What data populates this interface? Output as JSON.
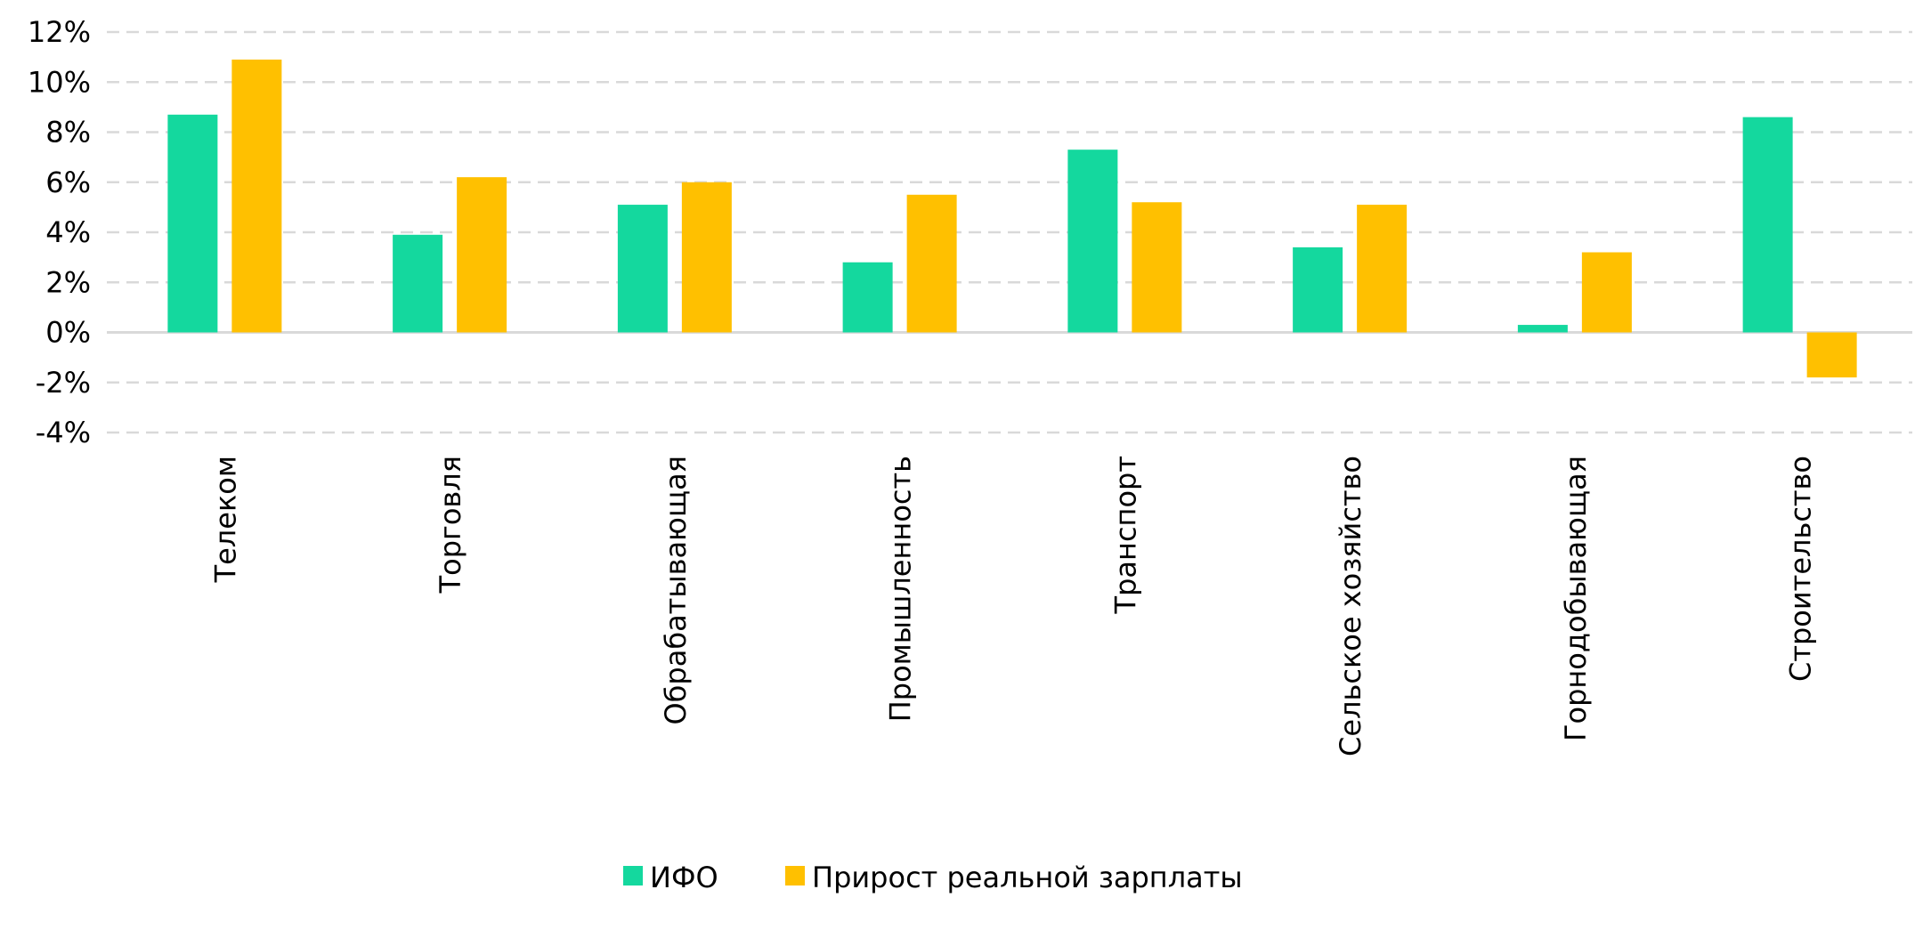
{
  "chart_data": {
    "type": "bar",
    "title": "",
    "xlabel": "",
    "ylabel": "",
    "categories": [
      "Телеком",
      "Торговля",
      "Обрабатывающая",
      "Промышленность",
      "Транспорт",
      "Сельское хозяйство",
      "Горнодобывающая",
      "Строительство"
    ],
    "series": [
      {
        "name": "ИФО",
        "color": "#14d89e",
        "values": [
          8.7,
          3.9,
          5.1,
          2.8,
          7.3,
          3.4,
          0.3,
          8.6
        ]
      },
      {
        "name": "Прирост реальной зарплаты",
        "color": "#ffc000",
        "values": [
          10.9,
          6.2,
          6.0,
          5.5,
          5.2,
          5.1,
          3.2,
          -1.8
        ]
      }
    ],
    "ylim": [
      -4,
      12
    ],
    "yticks": [
      12,
      10,
      8,
      6,
      4,
      2,
      0,
      -2,
      -4
    ],
    "ytick_labels": [
      "12%",
      "10%",
      "8%",
      "6%",
      "4%",
      "2%",
      "0%",
      "-2%",
      "-4%"
    ],
    "grid": true,
    "legend": "bottom",
    "gridline_color": "#d9d9d9",
    "zero_line_color": "#d9d9d9"
  }
}
